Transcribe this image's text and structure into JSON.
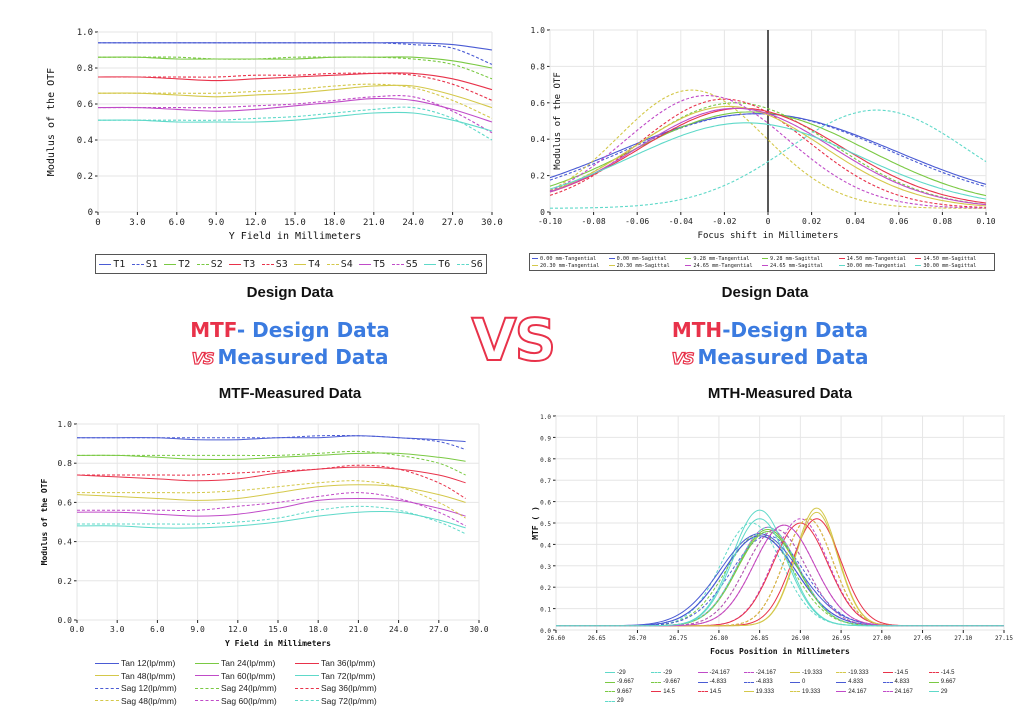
{
  "labels": {
    "design_data_left": "Design Data",
    "design_data_right": "Design Data",
    "mtf_word": "MTF",
    "mtf_rest": "- Design Data",
    "vs_small": "VS",
    "measured_data": "Measured Data",
    "mth_word": "MTH",
    "mth_rest": "-Design  Data",
    "vs_big": "VS",
    "mtf_measured": "MTF-Measured Data",
    "mth_measured": "MTH-Measured Data"
  },
  "chart_data": [
    {
      "type": "line",
      "title": "",
      "xlabel": "Y Field in Millimeters",
      "ylabel": "Modulus of the OTF",
      "xlim": [
        0,
        30
      ],
      "ylim": [
        0,
        1
      ],
      "xticks": [
        "0",
        "3.0",
        "6.0",
        "9.0",
        "12.0",
        "15.0",
        "18.0",
        "21.0",
        "24.0",
        "27.0",
        "30.0"
      ],
      "yticks": [
        "0",
        "0.2",
        "0.4",
        "0.6",
        "0.8",
        "1.0"
      ],
      "x": [
        0,
        3,
        6,
        9,
        12,
        15,
        18,
        21,
        24,
        27,
        30
      ],
      "legend": [
        "T1",
        "S1",
        "T2",
        "S2",
        "T3",
        "S3",
        "T4",
        "S4",
        "T5",
        "S5",
        "T6",
        "S6"
      ],
      "series": [
        {
          "name": "T1",
          "color": "#4a5bd4",
          "dash": false,
          "values": [
            0.94,
            0.94,
            0.94,
            0.94,
            0.94,
            0.94,
            0.94,
            0.94,
            0.94,
            0.93,
            0.9
          ]
        },
        {
          "name": "S1",
          "color": "#4a5bd4",
          "dash": true,
          "values": [
            0.94,
            0.94,
            0.94,
            0.94,
            0.94,
            0.94,
            0.94,
            0.94,
            0.93,
            0.91,
            0.82
          ]
        },
        {
          "name": "T2",
          "color": "#7ac943",
          "dash": false,
          "values": [
            0.86,
            0.86,
            0.85,
            0.85,
            0.85,
            0.85,
            0.86,
            0.86,
            0.86,
            0.84,
            0.8
          ]
        },
        {
          "name": "S2",
          "color": "#7ac943",
          "dash": true,
          "values": [
            0.86,
            0.86,
            0.86,
            0.85,
            0.85,
            0.86,
            0.86,
            0.86,
            0.85,
            0.82,
            0.74
          ]
        },
        {
          "name": "T3",
          "color": "#e8324a",
          "dash": false,
          "values": [
            0.75,
            0.75,
            0.74,
            0.73,
            0.74,
            0.75,
            0.76,
            0.77,
            0.77,
            0.74,
            0.68
          ]
        },
        {
          "name": "S3",
          "color": "#e8324a",
          "dash": true,
          "values": [
            0.75,
            0.75,
            0.75,
            0.75,
            0.76,
            0.76,
            0.77,
            0.77,
            0.76,
            0.71,
            0.62
          ]
        },
        {
          "name": "T4",
          "color": "#d4c84a",
          "dash": false,
          "values": [
            0.66,
            0.66,
            0.65,
            0.64,
            0.65,
            0.66,
            0.68,
            0.7,
            0.7,
            0.65,
            0.58
          ]
        },
        {
          "name": "S4",
          "color": "#d4c84a",
          "dash": true,
          "values": [
            0.66,
            0.66,
            0.66,
            0.66,
            0.67,
            0.68,
            0.7,
            0.71,
            0.69,
            0.62,
            0.52
          ]
        },
        {
          "name": "T5",
          "color": "#c04bc8",
          "dash": false,
          "values": [
            0.58,
            0.58,
            0.57,
            0.56,
            0.57,
            0.59,
            0.61,
            0.63,
            0.62,
            0.57,
            0.5
          ]
        },
        {
          "name": "S5",
          "color": "#c04bc8",
          "dash": true,
          "values": [
            0.58,
            0.58,
            0.58,
            0.58,
            0.59,
            0.6,
            0.62,
            0.64,
            0.64,
            0.56,
            0.44
          ]
        },
        {
          "name": "T6",
          "color": "#5fd9c9",
          "dash": false,
          "values": [
            0.51,
            0.51,
            0.5,
            0.5,
            0.5,
            0.51,
            0.53,
            0.55,
            0.55,
            0.51,
            0.45
          ]
        },
        {
          "name": "S6",
          "color": "#5fd9c9",
          "dash": true,
          "values": [
            0.51,
            0.51,
            0.51,
            0.51,
            0.52,
            0.53,
            0.55,
            0.57,
            0.58,
            0.52,
            0.4
          ]
        }
      ]
    },
    {
      "type": "line",
      "title": "",
      "xlabel": "Focus shift in Millimeters",
      "ylabel": "Modulus of the OTF",
      "xlim": [
        -0.1,
        0.1
      ],
      "ylim": [
        0,
        1
      ],
      "xticks": [
        "-0.10",
        "-0.08",
        "-0.06",
        "-0.04",
        "-0.02",
        "0",
        "0.02",
        "0.04",
        "0.06",
        "0.08",
        "0.10"
      ],
      "yticks": [
        "0",
        "0.2",
        "0.4",
        "0.6",
        "0.8",
        "1.0"
      ],
      "vline": 0,
      "legend": [
        "0.00 mm-Tangential",
        "0.00 mm-Sagittal",
        "9.28 mm-Tangential",
        "9.28 mm-Sagittal",
        "14.50 mm-Tangential",
        "14.50 mm-Sagittal",
        "20.30 mm-Tangential",
        "20.30 mm-Sagittal",
        "24.65 mm-Tangential",
        "24.65 mm-Sagittal",
        "30.00 mm-Tangential",
        "30.00 mm-Sagittal"
      ],
      "series": [
        {
          "name": "0.00 mm-Tangential",
          "color": "#4a5bd4",
          "dash": false,
          "center": -0.005,
          "peak": 0.52,
          "width": 0.085
        },
        {
          "name": "0.00 mm-Sagittal",
          "color": "#4a5bd4",
          "dash": true,
          "center": -0.005,
          "peak": 0.52,
          "width": 0.082
        },
        {
          "name": "9.28 mm-Tangential",
          "color": "#7ac943",
          "dash": false,
          "center": -0.008,
          "peak": 0.53,
          "width": 0.072
        },
        {
          "name": "9.28 mm-Sagittal",
          "color": "#7ac943",
          "dash": true,
          "center": -0.015,
          "peak": 0.58,
          "width": 0.06
        },
        {
          "name": "14.50 mm-Tangential",
          "color": "#e8324a",
          "dash": false,
          "center": -0.012,
          "peak": 0.55,
          "width": 0.062
        },
        {
          "name": "14.50 mm-Sagittal",
          "color": "#e8324a",
          "dash": true,
          "center": -0.02,
          "peak": 0.6,
          "width": 0.052
        },
        {
          "name": "20.30 mm-Tangential",
          "color": "#d4c84a",
          "dash": false,
          "center": -0.018,
          "peak": 0.56,
          "width": 0.058
        },
        {
          "name": "20.30 mm-Sagittal",
          "color": "#d4c84a",
          "dash": true,
          "center": -0.035,
          "peak": 0.65,
          "width": 0.045
        },
        {
          "name": "24.65 mm-Tangential",
          "color": "#c04bc8",
          "dash": false,
          "center": -0.015,
          "peak": 0.55,
          "width": 0.06
        },
        {
          "name": "24.65 mm-Sagittal",
          "color": "#c04bc8",
          "dash": true,
          "center": -0.028,
          "peak": 0.62,
          "width": 0.05
        },
        {
          "name": "30.00 mm-Tangential",
          "color": "#5fd9c9",
          "dash": false,
          "center": -0.01,
          "peak": 0.47,
          "width": 0.07
        },
        {
          "name": "30.00 mm-Sagittal",
          "color": "#5fd9c9",
          "dash": true,
          "center": 0.05,
          "peak": 0.54,
          "width": 0.055
        }
      ]
    },
    {
      "type": "line",
      "title": "",
      "xlabel": "Y Field in Millimeters",
      "ylabel": "Modulus of the OTF",
      "xlim": [
        0,
        30
      ],
      "ylim": [
        0,
        1
      ],
      "xticks": [
        "0.0",
        "3.0",
        "6.0",
        "9.0",
        "12.0",
        "15.0",
        "18.0",
        "21.0",
        "24.0",
        "27.0",
        "30.0"
      ],
      "yticks": [
        "0.0",
        "0.2",
        "0.4",
        "0.6",
        "0.8",
        "1.0"
      ],
      "x": [
        0,
        3,
        6,
        9,
        12,
        15,
        18,
        21,
        24,
        27,
        29
      ],
      "legend": [
        "Tan 12(lp/mm)",
        "Tan 24(lp/mm)",
        "Tan 36(lp/mm)",
        "Tan 48(lp/mm)",
        "Tan 60(lp/mm)",
        "Tan 72(lp/mm)",
        "Sag 12(lp/mm)",
        "Sag 24(lp/mm)",
        "Sag 36(lp/mm)",
        "Sag 48(lp/mm)",
        "Sag 60(lp/mm)",
        "Sag 72(lp/mm)"
      ],
      "series": [
        {
          "name": "Tan 12(lp/mm)",
          "color": "#4a5bd4",
          "dash": false,
          "values": [
            0.93,
            0.93,
            0.93,
            0.92,
            0.92,
            0.93,
            0.93,
            0.94,
            0.93,
            0.92,
            0.91
          ]
        },
        {
          "name": "Tan 24(lp/mm)",
          "color": "#7ac943",
          "dash": false,
          "values": [
            0.84,
            0.84,
            0.83,
            0.82,
            0.82,
            0.83,
            0.84,
            0.85,
            0.85,
            0.83,
            0.81
          ]
        },
        {
          "name": "Tan 36(lp/mm)",
          "color": "#e8324a",
          "dash": false,
          "values": [
            0.74,
            0.73,
            0.72,
            0.71,
            0.72,
            0.75,
            0.77,
            0.78,
            0.77,
            0.74,
            0.7
          ]
        },
        {
          "name": "Tan 48(lp/mm)",
          "color": "#d4c84a",
          "dash": false,
          "values": [
            0.64,
            0.63,
            0.62,
            0.61,
            0.62,
            0.65,
            0.68,
            0.69,
            0.68,
            0.64,
            0.6
          ]
        },
        {
          "name": "Tan 60(lp/mm)",
          "color": "#c04bc8",
          "dash": false,
          "values": [
            0.55,
            0.55,
            0.54,
            0.53,
            0.54,
            0.57,
            0.61,
            0.62,
            0.61,
            0.57,
            0.53
          ]
        },
        {
          "name": "Tan 72(lp/mm)",
          "color": "#5fd9c9",
          "dash": false,
          "values": [
            0.48,
            0.48,
            0.47,
            0.47,
            0.48,
            0.5,
            0.53,
            0.55,
            0.55,
            0.51,
            0.47
          ]
        },
        {
          "name": "Sag 12(lp/mm)",
          "color": "#4a5bd4",
          "dash": true,
          "values": [
            0.93,
            0.93,
            0.93,
            0.93,
            0.93,
            0.93,
            0.94,
            0.94,
            0.93,
            0.91,
            0.87
          ]
        },
        {
          "name": "Sag 24(lp/mm)",
          "color": "#7ac943",
          "dash": true,
          "values": [
            0.84,
            0.84,
            0.84,
            0.84,
            0.84,
            0.84,
            0.85,
            0.86,
            0.84,
            0.8,
            0.74
          ]
        },
        {
          "name": "Sag 36(lp/mm)",
          "color": "#e8324a",
          "dash": true,
          "values": [
            0.74,
            0.74,
            0.74,
            0.74,
            0.75,
            0.76,
            0.77,
            0.79,
            0.77,
            0.7,
            0.62
          ]
        },
        {
          "name": "Sag 48(lp/mm)",
          "color": "#d4c84a",
          "dash": true,
          "values": [
            0.65,
            0.65,
            0.65,
            0.65,
            0.66,
            0.68,
            0.7,
            0.71,
            0.68,
            0.6,
            0.52
          ]
        },
        {
          "name": "Sag 60(lp/mm)",
          "color": "#c04bc8",
          "dash": true,
          "values": [
            0.56,
            0.56,
            0.56,
            0.56,
            0.58,
            0.6,
            0.63,
            0.65,
            0.62,
            0.55,
            0.48
          ]
        },
        {
          "name": "Sag 72(lp/mm)",
          "color": "#5fd9c9",
          "dash": true,
          "values": [
            0.49,
            0.49,
            0.49,
            0.49,
            0.5,
            0.52,
            0.56,
            0.58,
            0.56,
            0.5,
            0.44
          ]
        }
      ]
    },
    {
      "type": "line",
      "title": "",
      "xlabel": "Focus Position in Millimeters",
      "ylabel": "MTF (   )",
      "xlim": [
        26.6,
        27.15
      ],
      "ylim": [
        0,
        1
      ],
      "xticks": [
        "26.60",
        "26.65",
        "26.70",
        "26.75",
        "26.80",
        "26.85",
        "26.90",
        "26.95",
        "27.00",
        "27.05",
        "27.10",
        "27.15"
      ],
      "yticks": [
        "0.0",
        "0.1",
        "0.2",
        "0.3",
        "0.4",
        "0.5",
        "0.6",
        "0.7",
        "0.8",
        "0.9",
        "1.0"
      ],
      "legend": [
        "-29",
        "-29",
        "-24.167",
        "-24.167",
        "-19.333",
        "-19.333",
        "-14.5",
        "-14.5",
        "-9.667",
        "-9.667",
        "-4.833",
        "-4.833",
        "0",
        "4.833",
        "4.833",
        "9.667",
        "9.667",
        "14.5",
        "14.5",
        "19.333",
        "19.333",
        "24.167",
        "24.167",
        "29",
        "29"
      ],
      "series": [
        {
          "name": "-29",
          "color": "#5fd9c9",
          "dash": false,
          "center": 26.85,
          "peak": 0.54,
          "width": 0.045
        },
        {
          "name": "-29",
          "color": "#5fd9c9",
          "dash": true,
          "center": 26.84,
          "peak": 0.48,
          "width": 0.05
        },
        {
          "name": "-24.167",
          "color": "#c04bc8",
          "dash": false,
          "center": 26.86,
          "peak": 0.46,
          "width": 0.05
        },
        {
          "name": "-24.167",
          "color": "#c04bc8",
          "dash": true,
          "center": 26.9,
          "peak": 0.5,
          "width": 0.045
        },
        {
          "name": "-19.333",
          "color": "#d4c84a",
          "dash": false,
          "center": 26.92,
          "peak": 0.55,
          "width": 0.035
        },
        {
          "name": "-19.333",
          "color": "#d4c84a",
          "dash": true,
          "center": 26.91,
          "peak": 0.5,
          "width": 0.04
        },
        {
          "name": "-14.5",
          "color": "#e8324a",
          "dash": false,
          "center": 26.92,
          "peak": 0.5,
          "width": 0.04
        },
        {
          "name": "-14.5",
          "color": "#e8324a",
          "dash": true,
          "center": 26.88,
          "peak": 0.47,
          "width": 0.05
        },
        {
          "name": "-9.667",
          "color": "#7ac943",
          "dash": false,
          "center": 26.86,
          "peak": 0.45,
          "width": 0.05
        },
        {
          "name": "-9.667",
          "color": "#7ac943",
          "dash": true,
          "center": 26.85,
          "peak": 0.43,
          "width": 0.055
        },
        {
          "name": "-4.833",
          "color": "#4a5bd4",
          "dash": false,
          "center": 26.85,
          "peak": 0.42,
          "width": 0.06
        },
        {
          "name": "-4.833",
          "color": "#4a5bd4",
          "dash": true,
          "center": 26.85,
          "peak": 0.42,
          "width": 0.06
        },
        {
          "name": "0",
          "color": "#4a5bd4",
          "dash": false,
          "center": 26.85,
          "peak": 0.43,
          "width": 0.065
        },
        {
          "name": "4.833",
          "color": "#4a5bd4",
          "dash": false,
          "center": 26.85,
          "peak": 0.42,
          "width": 0.06
        },
        {
          "name": "4.833",
          "color": "#4a5bd4",
          "dash": true,
          "center": 26.86,
          "peak": 0.42,
          "width": 0.06
        },
        {
          "name": "9.667",
          "color": "#7ac943",
          "dash": false,
          "center": 26.86,
          "peak": 0.44,
          "width": 0.05
        },
        {
          "name": "9.667",
          "color": "#7ac943",
          "dash": true,
          "center": 26.87,
          "peak": 0.45,
          "width": 0.05
        },
        {
          "name": "14.5",
          "color": "#e8324a",
          "dash": false,
          "center": 26.9,
          "peak": 0.48,
          "width": 0.045
        },
        {
          "name": "14.5",
          "color": "#e8324a",
          "dash": true,
          "center": 26.91,
          "peak": 0.5,
          "width": 0.04
        },
        {
          "name": "19.333",
          "color": "#d4c84a",
          "dash": false,
          "center": 26.92,
          "peak": 0.53,
          "width": 0.035
        },
        {
          "name": "19.333",
          "color": "#d4c84a",
          "dash": true,
          "center": 26.91,
          "peak": 0.5,
          "width": 0.04
        },
        {
          "name": "24.167",
          "color": "#c04bc8",
          "dash": false,
          "center": 26.88,
          "peak": 0.47,
          "width": 0.05
        },
        {
          "name": "24.167",
          "color": "#c04bc8",
          "dash": true,
          "center": 26.87,
          "peak": 0.45,
          "width": 0.05
        },
        {
          "name": "29",
          "color": "#5fd9c9",
          "dash": false,
          "center": 26.85,
          "peak": 0.5,
          "width": 0.045
        },
        {
          "name": "29",
          "color": "#5fd9c9",
          "dash": true,
          "center": 26.86,
          "peak": 0.46,
          "width": 0.05
        }
      ]
    }
  ]
}
